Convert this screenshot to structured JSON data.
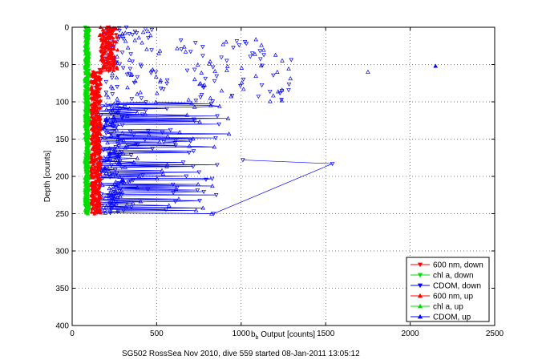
{
  "chart_data": {
    "type": "line",
    "title": "",
    "xlabel_base": "b",
    "xlabel_sub": "b",
    "xlabel_rest": " Output [counts]",
    "ylabel": "Depth [counts]",
    "caption": "SG502 RossSea Nov 2010, dive 559 started 08-Jan-2011 13:05:12",
    "xlim": [
      0,
      2500
    ],
    "ylim": [
      0,
      400
    ],
    "y_reversed": true,
    "grid": true,
    "grid_style": "dotted",
    "legend_placement": "bottom-right",
    "x_ticks": [
      "0",
      "500",
      "1000",
      "1500",
      "2000",
      "2500"
    ],
    "y_ticks": [
      "0",
      "50",
      "100",
      "150",
      "200",
      "250",
      "300",
      "350",
      "400"
    ],
    "series": [
      {
        "name": "600 nm, down",
        "color": "#ff0000",
        "marker": "triangle-down",
        "depth_range": [
          0,
          250
        ],
        "x_center": 140,
        "x_spread": 30
      },
      {
        "name": "chl a, down",
        "color": "#00dd00",
        "marker": "triangle-down",
        "depth_range": [
          0,
          250
        ],
        "x_center": 95,
        "x_spread": 12
      },
      {
        "name": "CDOM, down",
        "color": "#0000ff",
        "marker": "triangle-down",
        "depth_range": [
          0,
          250
        ],
        "x_center": 400,
        "x_spread": 300
      },
      {
        "name": "600 nm, up",
        "color": "#ff0000",
        "marker": "triangle-up",
        "depth_range": [
          0,
          250
        ],
        "x_center": 140,
        "x_spread": 30
      },
      {
        "name": "chl a, up",
        "color": "#00dd00",
        "marker": "triangle-up",
        "depth_range": [
          0,
          250
        ],
        "x_center": 95,
        "x_spread": 12
      },
      {
        "name": "CDOM, up",
        "color": "#0000ff",
        "marker": "triangle-up",
        "depth_range": [
          0,
          250
        ],
        "x_center": 400,
        "x_spread": 300
      }
    ],
    "notable_points": [
      {
        "series": "CDOM, up",
        "x": 2150,
        "y": 52
      },
      {
        "series": "CDOM, up",
        "x": 1750,
        "y": 60
      },
      {
        "series": "CDOM, down",
        "x": 1540,
        "y": 183
      },
      {
        "series": "CDOM, down",
        "x": 1010,
        "y": 178
      }
    ]
  }
}
